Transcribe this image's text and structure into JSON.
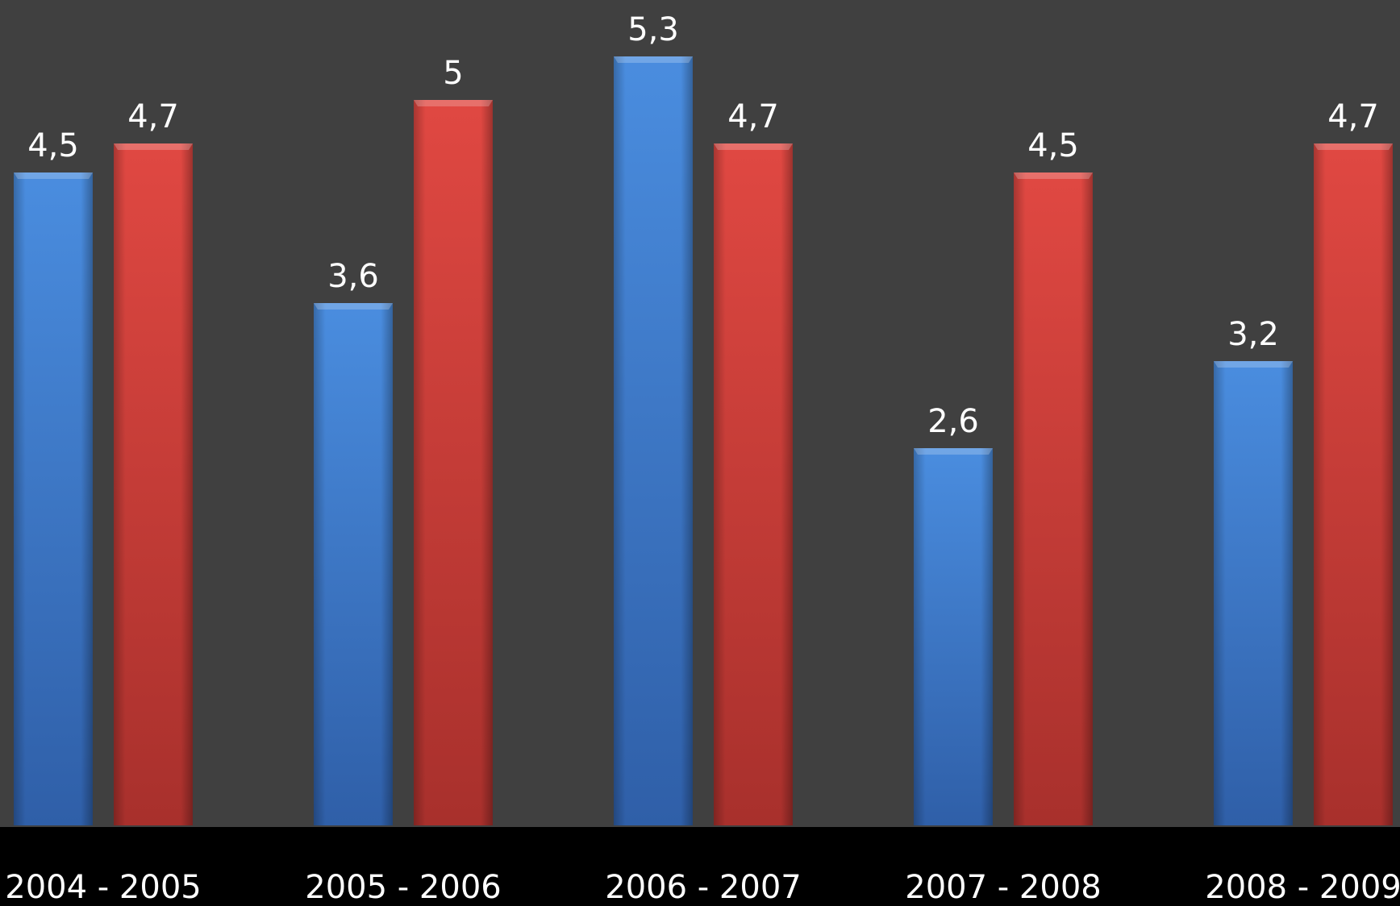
{
  "chart_data": {
    "type": "bar",
    "categories": [
      "2004 - 2005",
      "2005 - 2006",
      "2006 - 2007",
      "2007 - 2008",
      "2008 - 2009"
    ],
    "series": [
      {
        "values": [
          4.5,
          3.6,
          5.3,
          2.6,
          3.2
        ],
        "labels": [
          "4,5",
          "3,6",
          "5,3",
          "2,6",
          "3,2"
        ],
        "color": "#3f7fd0"
      },
      {
        "values": [
          4.7,
          5.0,
          4.7,
          4.5,
          4.7
        ],
        "labels": [
          "4,7",
          "5",
          "4,7",
          "4,5",
          "4,7"
        ],
        "color": "#d4403b"
      }
    ],
    "ylim": [
      0,
      5.7
    ],
    "grid": false,
    "legend": "none",
    "title": "",
    "xlabel": "",
    "ylabel": "",
    "colors": {
      "plot_background": "#404040",
      "axis_band": "#000000",
      "text": "#ffffff"
    }
  }
}
